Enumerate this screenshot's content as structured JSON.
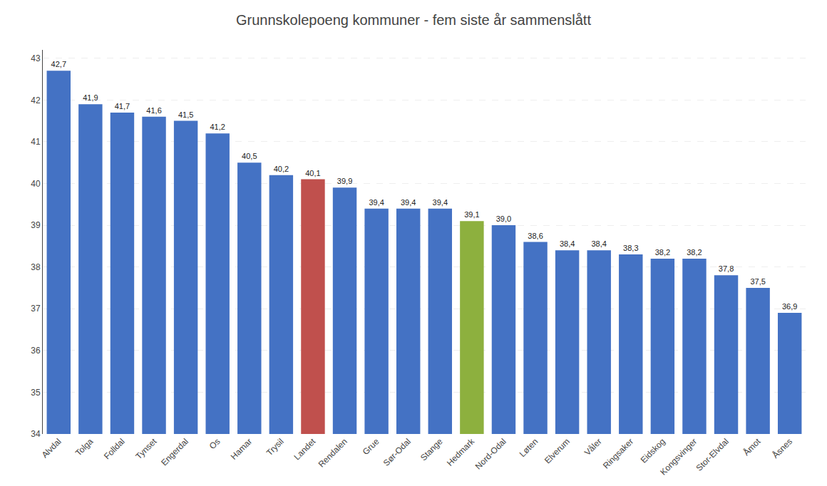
{
  "chart_data": {
    "type": "bar",
    "title": "Grunnskolepoeng kommuner - fem siste år sammenslått",
    "categories": [
      "Alvdal",
      "Tolga",
      "Folldal",
      "Tynset",
      "Engerdal",
      "Os",
      "Hamar",
      "Trysil",
      "Landet",
      "Rendalen",
      "Grue",
      "Sør-Odal",
      "Stange",
      "Hedmark",
      "Nord-Odal",
      "Løten",
      "Elverum",
      "Våler",
      "Ringsaker",
      "Eidskog",
      "Kongsvinger",
      "Stor-Elvdal",
      "Åmot",
      "Åsnes"
    ],
    "values": [
      42.7,
      41.9,
      41.7,
      41.6,
      41.5,
      41.2,
      40.5,
      40.2,
      40.1,
      39.9,
      39.4,
      39.4,
      39.4,
      39.1,
      39.0,
      38.6,
      38.4,
      38.4,
      38.3,
      38.2,
      38.2,
      37.8,
      37.5,
      36.9
    ],
    "value_labels": [
      "42,7",
      "41,9",
      "41,7",
      "41,6",
      "41,5",
      "41,2",
      "40,5",
      "40,2",
      "40,1",
      "39,9",
      "39,4",
      "39,4",
      "39,4",
      "39,1",
      "39,0",
      "38,6",
      "38,4",
      "38,4",
      "38,3",
      "38,2",
      "38,2",
      "37,8",
      "37,5",
      "36,9"
    ],
    "colors": [
      "#4472C4",
      "#4472C4",
      "#4472C4",
      "#4472C4",
      "#4472C4",
      "#4472C4",
      "#4472C4",
      "#4472C4",
      "#C0504D",
      "#4472C4",
      "#4472C4",
      "#4472C4",
      "#4472C4",
      "#8DB03E",
      "#4472C4",
      "#4472C4",
      "#4472C4",
      "#4472C4",
      "#4472C4",
      "#4472C4",
      "#4472C4",
      "#4472C4",
      "#4472C4",
      "#4472C4"
    ],
    "ylim": [
      34,
      43.2
    ],
    "yticks": [
      34,
      35,
      36,
      37,
      38,
      39,
      40,
      41,
      42,
      43
    ],
    "grid": true,
    "data_labels": true
  }
}
